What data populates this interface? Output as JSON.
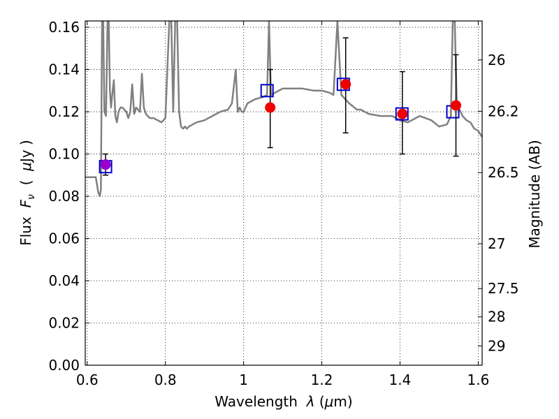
{
  "chart_data": {
    "type": "scatter",
    "title": "",
    "xlabel": {
      "prefix": "Wavelength  ",
      "symbol": "λ",
      "unit": " (",
      "mu": "μ",
      "end": "m)"
    },
    "ylabel": {
      "prefix": "Flux  ",
      "symbol": "F",
      "sub": "ν",
      "open": "  (  ",
      "mu": "μ",
      "end": "Jy )"
    },
    "y2label": "Magnitude (AB)",
    "xlim": [
      0.595,
      1.61
    ],
    "ylim": [
      0.0,
      0.163
    ],
    "grid": true,
    "xticks": [
      {
        "value": 0.6,
        "label": "0.6"
      },
      {
        "value": 0.8,
        "label": "0.8"
      },
      {
        "value": 1.0,
        "label": "1"
      },
      {
        "value": 1.2,
        "label": "1.2"
      },
      {
        "value": 1.4,
        "label": "1.4"
      },
      {
        "value": 1.6,
        "label": "1.6"
      }
    ],
    "yticks": [
      {
        "value": 0.0,
        "label": "0.00"
      },
      {
        "value": 0.02,
        "label": "0.02"
      },
      {
        "value": 0.04,
        "label": "0.04"
      },
      {
        "value": 0.06,
        "label": "0.06"
      },
      {
        "value": 0.08,
        "label": "0.08"
      },
      {
        "value": 0.1,
        "label": "0.10"
      },
      {
        "value": 0.12,
        "label": "0.12"
      },
      {
        "value": 0.14,
        "label": "0.14"
      },
      {
        "value": 0.16,
        "label": "0.16"
      }
    ],
    "y2ticks": [
      {
        "value": 26.0,
        "label": "26"
      },
      {
        "value": 26.2,
        "label": "26.2"
      },
      {
        "value": 26.5,
        "label": "26.5"
      },
      {
        "value": 27.0,
        "label": "27"
      },
      {
        "value": 27.5,
        "label": "27.5"
      },
      {
        "value": 28.0,
        "label": "28"
      },
      {
        "value": 29.0,
        "label": "29"
      }
    ],
    "model_spectrum": {
      "color": "#808080",
      "x": [
        0.595,
        0.612,
        0.618,
        0.622,
        0.628,
        0.632,
        0.635,
        0.638,
        0.641,
        0.644,
        0.648,
        0.652,
        0.655,
        0.658,
        0.661,
        0.664,
        0.668,
        0.672,
        0.676,
        0.68,
        0.685,
        0.69,
        0.695,
        0.7,
        0.705,
        0.71,
        0.715,
        0.72,
        0.725,
        0.73,
        0.735,
        0.74,
        0.745,
        0.75,
        0.755,
        0.76,
        0.77,
        0.78,
        0.79,
        0.8,
        0.81,
        0.815,
        0.82,
        0.825,
        0.83,
        0.835,
        0.84,
        0.845,
        0.85,
        0.855,
        0.86,
        0.87,
        0.88,
        0.9,
        0.92,
        0.94,
        0.96,
        0.97,
        0.98,
        0.985,
        0.99,
        0.995,
        1.0,
        1.01,
        1.03,
        1.05,
        1.06,
        1.065,
        1.07,
        1.08,
        1.1,
        1.12,
        1.15,
        1.18,
        1.2,
        1.22,
        1.23,
        1.24,
        1.25,
        1.27,
        1.29,
        1.3,
        1.32,
        1.35,
        1.38,
        1.4,
        1.42,
        1.45,
        1.48,
        1.5,
        1.52,
        1.53,
        1.535,
        1.54,
        1.545,
        1.55,
        1.56,
        1.57,
        1.58,
        1.59,
        1.6,
        1.61
      ],
      "y": [
        0.089,
        0.089,
        0.089,
        0.089,
        0.082,
        0.08,
        0.083,
        0.163,
        0.163,
        0.12,
        0.118,
        0.163,
        0.163,
        0.13,
        0.122,
        0.128,
        0.135,
        0.118,
        0.115,
        0.12,
        0.122,
        0.122,
        0.121,
        0.12,
        0.117,
        0.12,
        0.133,
        0.119,
        0.122,
        0.121,
        0.12,
        0.138,
        0.122,
        0.119,
        0.118,
        0.117,
        0.117,
        0.116,
        0.115,
        0.117,
        0.163,
        0.163,
        0.12,
        0.163,
        0.163,
        0.12,
        0.113,
        0.112,
        0.113,
        0.112,
        0.113,
        0.114,
        0.115,
        0.116,
        0.118,
        0.12,
        0.121,
        0.124,
        0.14,
        0.12,
        0.122,
        0.12,
        0.12,
        0.124,
        0.126,
        0.127,
        0.128,
        0.163,
        0.128,
        0.129,
        0.131,
        0.131,
        0.131,
        0.13,
        0.13,
        0.129,
        0.128,
        0.163,
        0.128,
        0.124,
        0.121,
        0.121,
        0.119,
        0.118,
        0.118,
        0.116,
        0.115,
        0.118,
        0.116,
        0.113,
        0.114,
        0.118,
        0.163,
        0.163,
        0.125,
        0.122,
        0.118,
        0.116,
        0.115,
        0.112,
        0.111,
        0.108
      ]
    },
    "series": [
      {
        "kind": "model_points",
        "marker": "open-square",
        "color": "#0000cc",
        "x": [
          0.647,
          1.06,
          1.255,
          1.405,
          1.535
        ],
        "y": [
          0.094,
          0.13,
          0.133,
          0.119,
          0.12
        ]
      },
      {
        "kind": "observed",
        "marker": "filled-circle",
        "x": [
          0.647,
          1.068,
          1.261,
          1.406,
          1.543
        ],
        "y": [
          0.095,
          0.122,
          0.133,
          0.119,
          0.123
        ],
        "yerr_low": [
          0.09,
          0.103,
          0.11,
          0.1,
          0.099
        ],
        "yerr_high": [
          0.1,
          0.14,
          0.155,
          0.139,
          0.147
        ],
        "colors": [
          "#9900cc",
          "#ee0000",
          "#ee0000",
          "#ee0000",
          "#ee0000"
        ]
      }
    ]
  }
}
